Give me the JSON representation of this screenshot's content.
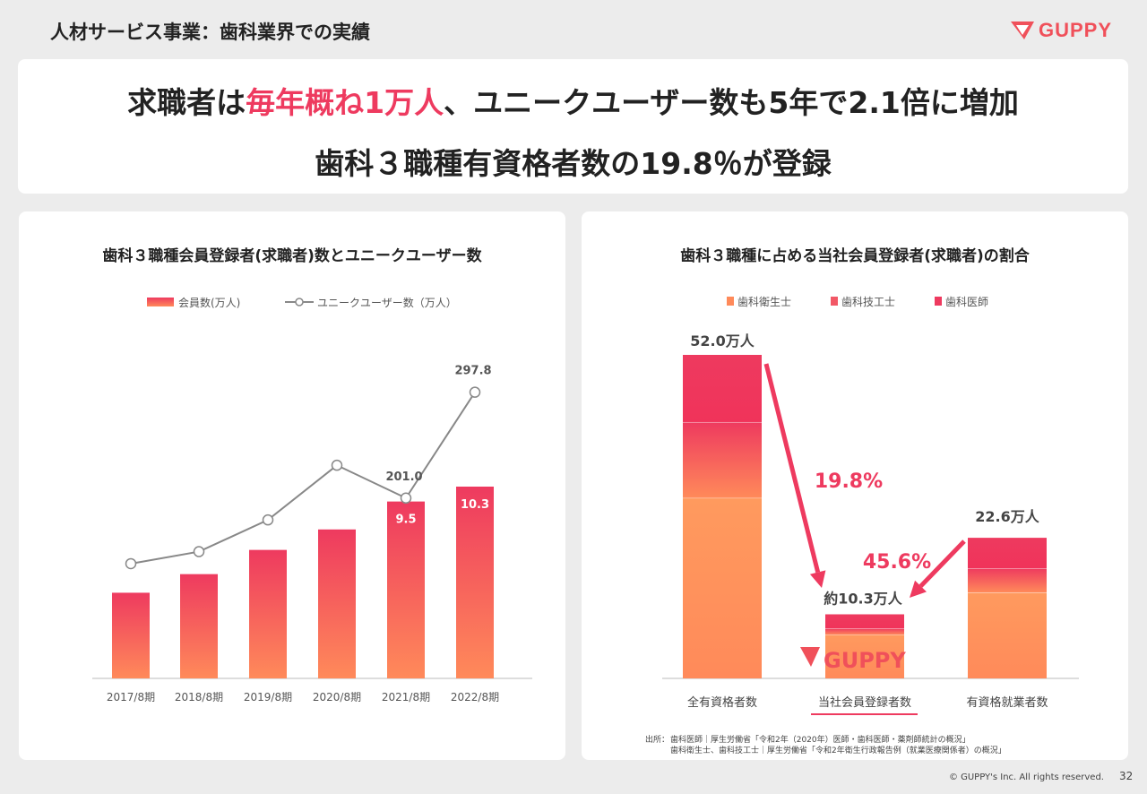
{
  "header": {
    "page_title": "人材サービス事業：歯科業界での実績",
    "logo_text": "GUPPY"
  },
  "headline": {
    "line1_pre": "求職者は",
    "line1_highlight": "毎年概ね1万人",
    "line1_post": "、ユニークユーザー数も5年で2.1倍に増加",
    "line2": "歯科３職種有資格者数の19.8％が登録"
  },
  "colors": {
    "accent_red": "#ee3a5f",
    "bar_top": "#ee3a5f",
    "bar_bottom": "#ff8a5a",
    "line_gray": "#888888"
  },
  "chart_data": [
    {
      "type": "bar",
      "title": "歯科３職種会員登録者(求職者)数とユニークユーザー数",
      "categories": [
        "2017/8期",
        "2018/8期",
        "2019/8期",
        "2020/8期",
        "2021/8期",
        "2022/8期"
      ],
      "series": [
        {
          "name": "会員数(万人)",
          "type": "bar",
          "values": [
            4.6,
            5.6,
            6.9,
            8.0,
            9.5,
            10.3
          ],
          "labels": [
            "",
            "",
            "",
            "",
            "9.5",
            "10.3"
          ]
        },
        {
          "name": "ユニークユーザー数（万人）",
          "type": "line",
          "values": [
            141,
            152,
            181,
            231,
            201.0,
            297.8
          ],
          "labels": [
            "",
            "",
            "",
            "",
            "201.0",
            "297.8"
          ]
        }
      ],
      "grid": false,
      "legend": "top"
    },
    {
      "type": "bar",
      "title": "歯科３職種に占める当社会員登録者(求職者)の割合",
      "stacked": true,
      "categories": [
        "全有資格者数",
        "当社会員登録者数",
        "有資格就業者数"
      ],
      "series": [
        {
          "name": "歯科衛生士",
          "values": [
            29.0,
            7.0,
            13.8
          ]
        },
        {
          "name": "歯科技工士",
          "values": [
            12.2,
            1.0,
            3.9
          ]
        },
        {
          "name": "歯科医師",
          "values": [
            10.8,
            2.3,
            4.9
          ]
        }
      ],
      "totals": [
        "52.0万人",
        "約10.3万人",
        "22.6万人"
      ],
      "annotations": [
        "19.8%",
        "45.6%"
      ],
      "legend": "top",
      "source_label": "出所：",
      "source_lines": [
        "歯科医師｜厚生労働省「令和2年（2020年）医師・歯科医師・薬剤師統計の概況」",
        "歯科衛生士、歯科技工士｜厚生労働省「令和2年衛生行政報告例（就業医療関係者）の概況」"
      ]
    }
  ],
  "footer": {
    "copyright": "© GUPPY's Inc. All rights reserved.",
    "page_number": "32"
  }
}
